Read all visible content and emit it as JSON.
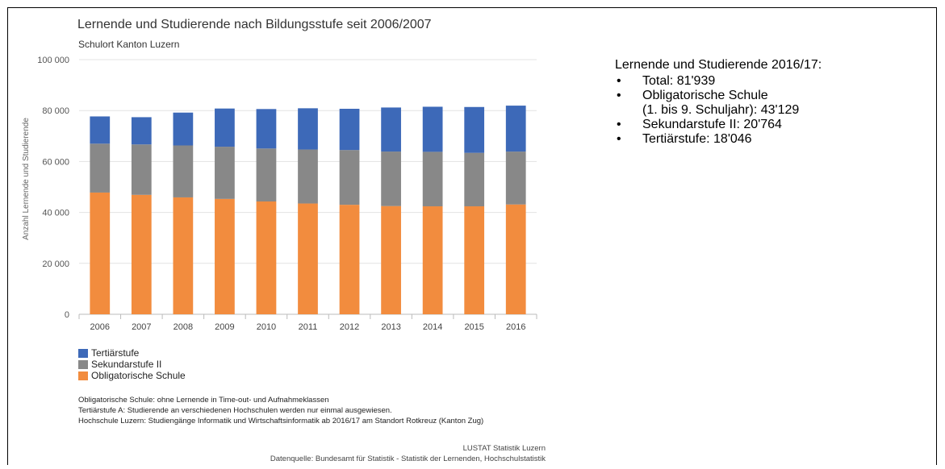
{
  "chart_data": {
    "type": "bar",
    "stacked": true,
    "title": "Lernende und Studierende nach Bildungsstufe seit 2006/2007",
    "subtitle": "Schulort Kanton Luzern",
    "ylabel": "Anzahl Lernende und Studierende",
    "xlabel": "",
    "ylim": [
      0,
      100000
    ],
    "yticks": [
      "0",
      "20 000",
      "40 000",
      "60 000",
      "80 000",
      "100 000"
    ],
    "ytick_values": [
      0,
      20000,
      40000,
      60000,
      80000,
      100000
    ],
    "grid": true,
    "legend": "bottom-left",
    "categories": [
      "2006",
      "2007",
      "2008",
      "2009",
      "2010",
      "2011",
      "2012",
      "2013",
      "2014",
      "2015",
      "2016"
    ],
    "series": [
      {
        "name": "Obligatorische Schule",
        "color": "#F28C3E",
        "values": [
          47800,
          46900,
          45900,
          45300,
          44300,
          43500,
          43000,
          42500,
          42400,
          42400,
          43129
        ]
      },
      {
        "name": "Sekundarstufe II",
        "color": "#888888",
        "values": [
          19200,
          19800,
          20400,
          20500,
          20800,
          21200,
          21500,
          21400,
          21400,
          21000,
          20764
        ]
      },
      {
        "name": "Tertiärstufe",
        "color": "#3D69B8",
        "values": [
          10700,
          10700,
          12900,
          15000,
          15500,
          16200,
          16200,
          17300,
          17700,
          18000,
          18046
        ]
      }
    ]
  },
  "legend_items": [
    {
      "label": "Tertiärstufe",
      "color": "#3D69B8"
    },
    {
      "label": "Sekundarstufe II",
      "color": "#888888"
    },
    {
      "label": "Obligatorische Schule",
      "color": "#F28C3E"
    }
  ],
  "notes": [
    "Obligatorische Schule: ohne Lernende in Time-out- und Aufnahmeklassen",
    "Tertiärstufe A: Studierende an verschiedenen Hochschulen werden nur einmal ausgewiesen.",
    "Hochschule Luzern: Studiengänge Informatik und Wirtschaftsinformatik ab 2016/17 am Standort Rotkreuz (Kanton Zug)"
  ],
  "source": {
    "line1": "LUSTAT Statistik Luzern",
    "line2": "Datenquelle: Bundesamt für Statistik - Statistik der Lernenden, Hochschulstatistik"
  },
  "summary": {
    "heading": "Lernende und Studierende 2016/17:",
    "bullet_char": "•",
    "items": [
      {
        "text": "Total: 81'939",
        "sub": ""
      },
      {
        "text": "Obligatorische Schule",
        "sub": "(1. bis 9. Schuljahr): 43'129"
      },
      {
        "text": "Sekundarstufe II: 20'764",
        "sub": ""
      },
      {
        "text": "Tertiärstufe: 18'046",
        "sub": ""
      }
    ]
  }
}
